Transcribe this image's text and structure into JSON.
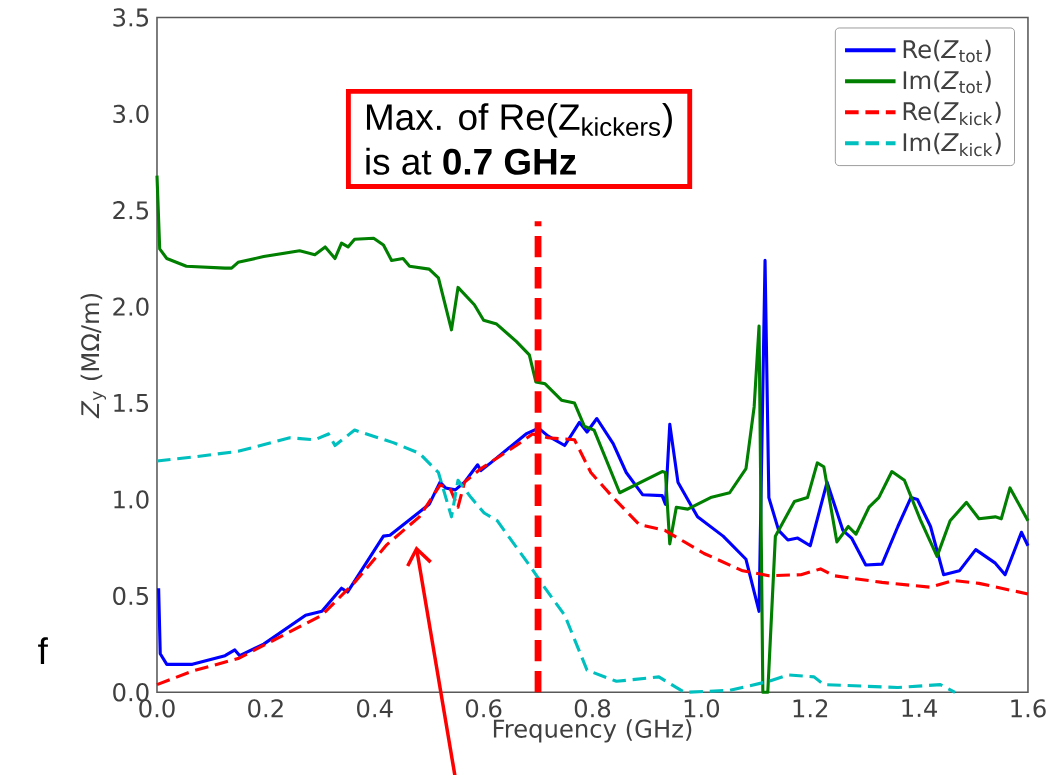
{
  "chart_data": {
    "type": "line",
    "xlabel": "Frequency (GHz)",
    "ylabel": "*Z*$_{y}$ (MΩ/m)",
    "xlim": [
      0,
      1.6
    ],
    "ylim": [
      0,
      3.5
    ],
    "xticks": [
      {
        "value": 0,
        "label": "0.0"
      },
      {
        "value": 0.2,
        "label": "0.2"
      },
      {
        "value": 0.4,
        "label": "0.4"
      },
      {
        "value": 0.6,
        "label": "0.6"
      },
      {
        "value": 0.8,
        "label": "0.8"
      },
      {
        "value": 1.0,
        "label": "1.0"
      },
      {
        "value": 1.2,
        "label": "1.2"
      },
      {
        "value": 1.4,
        "label": "1.4"
      },
      {
        "value": 1.6,
        "label": "1.6"
      }
    ],
    "yticks": [
      {
        "value": 0,
        "label": "0.0"
      },
      {
        "value": 0.5,
        "label": "0.5"
      },
      {
        "value": 1.0,
        "label": "1.0"
      },
      {
        "value": 1.5,
        "label": "1.5"
      },
      {
        "value": 2.0,
        "label": "2.0"
      },
      {
        "value": 2.5,
        "label": "2.5"
      },
      {
        "value": 3.0,
        "label": "3.0"
      },
      {
        "value": 3.5,
        "label": "3.5"
      }
    ],
    "legend": "top right",
    "series": [
      {
        "name": "Re(*Z*$_{tot}$)",
        "color": "#0000ff",
        "line_style": "solid",
        "x": [
          0.003,
          0.006,
          0.018,
          0.065,
          0.125,
          0.143,
          0.152,
          0.196,
          0.273,
          0.303,
          0.339,
          0.35,
          0.416,
          0.428,
          0.5,
          0.52,
          0.53,
          0.548,
          0.565,
          0.589,
          0.595,
          0.613,
          0.678,
          0.701,
          0.718,
          0.749,
          0.776,
          0.79,
          0.808,
          0.838,
          0.862,
          0.892,
          0.928,
          0.934,
          0.942,
          0.957,
          0.993,
          1.04,
          1.082,
          1.106,
          1.117,
          1.124,
          1.142,
          1.159,
          1.177,
          1.2,
          1.231,
          1.26,
          1.276,
          1.302,
          1.332,
          1.361,
          1.385,
          1.397,
          1.421,
          1.445,
          1.474,
          1.504,
          1.54,
          1.558,
          1.588,
          1.6
        ],
        "values": [
          0.54,
          0.2,
          0.145,
          0.145,
          0.19,
          0.22,
          0.19,
          0.25,
          0.4,
          0.42,
          0.54,
          0.52,
          0.81,
          0.815,
          0.975,
          1.09,
          1.06,
          1.05,
          1.09,
          1.18,
          1.15,
          1.19,
          1.34,
          1.37,
          1.33,
          1.28,
          1.4,
          1.35,
          1.42,
          1.29,
          1.14,
          1.025,
          1.02,
          0.975,
          1.39,
          1.09,
          0.91,
          0.81,
          0.69,
          0.42,
          2.24,
          1.01,
          0.84,
          0.79,
          0.8,
          0.76,
          1.09,
          0.84,
          0.8,
          0.66,
          0.665,
          0.86,
          1.01,
          1.0,
          0.86,
          0.61,
          0.63,
          0.74,
          0.67,
          0.61,
          0.83,
          0.76
        ]
      },
      {
        "name": "Im(*Z*$_{tot}$)",
        "color": "#007f00",
        "line_style": "solid",
        "x": [
          0.0,
          0.005,
          0.018,
          0.054,
          0.125,
          0.137,
          0.149,
          0.196,
          0.262,
          0.29,
          0.309,
          0.327,
          0.339,
          0.351,
          0.363,
          0.398,
          0.416,
          0.431,
          0.452,
          0.464,
          0.5,
          0.517,
          0.541,
          0.553,
          0.583,
          0.6,
          0.624,
          0.66,
          0.684,
          0.696,
          0.713,
          0.743,
          0.767,
          0.785,
          0.803,
          0.85,
          0.928,
          0.934,
          0.942,
          0.954,
          0.975,
          1.017,
          1.052,
          1.082,
          1.097,
          1.106,
          1.113,
          1.122,
          1.136,
          1.171,
          1.195,
          1.213,
          1.225,
          1.249,
          1.27,
          1.284,
          1.308,
          1.326,
          1.35,
          1.373,
          1.403,
          1.433,
          1.457,
          1.487,
          1.51,
          1.54,
          1.551,
          1.567,
          1.6
        ],
        "values": [
          2.68,
          2.3,
          2.25,
          2.21,
          2.2,
          2.2,
          2.23,
          2.26,
          2.29,
          2.27,
          2.31,
          2.25,
          2.33,
          2.31,
          2.35,
          2.355,
          2.32,
          2.24,
          2.25,
          2.21,
          2.195,
          2.15,
          1.88,
          2.1,
          2.01,
          1.93,
          1.91,
          1.82,
          1.75,
          1.61,
          1.6,
          1.515,
          1.5,
          1.38,
          1.36,
          1.035,
          1.145,
          1.14,
          0.77,
          0.96,
          0.95,
          1.01,
          1.035,
          1.16,
          1.48,
          1.9,
          0.0,
          0.0,
          0.81,
          0.99,
          1.01,
          1.19,
          1.17,
          0.78,
          0.86,
          0.82,
          0.96,
          1.01,
          1.145,
          1.1,
          0.89,
          0.705,
          0.89,
          0.985,
          0.9,
          0.91,
          0.9,
          1.06,
          0.89
        ]
      },
      {
        "name": "Re(*Z*$_{kick}$)",
        "color": "#ff0000",
        "line_style": "dashed",
        "x": [
          0.0,
          0.065,
          0.149,
          0.214,
          0.303,
          0.363,
          0.422,
          0.482,
          0.52,
          0.538,
          0.553,
          0.565,
          0.595,
          0.66,
          0.69,
          0.718,
          0.767,
          0.797,
          0.838,
          0.886,
          0.933,
          1.005,
          1.076,
          1.124,
          1.183,
          1.219,
          1.243,
          1.332,
          1.421,
          1.463,
          1.51,
          1.6
        ],
        "values": [
          0.04,
          0.11,
          0.175,
          0.27,
          0.4,
          0.57,
          0.765,
          0.91,
          1.075,
          1.06,
          0.96,
          1.09,
          1.16,
          1.28,
          1.34,
          1.32,
          1.31,
          1.14,
          1.01,
          0.87,
          0.84,
          0.72,
          0.63,
          0.605,
          0.61,
          0.64,
          0.605,
          0.57,
          0.545,
          0.58,
          0.565,
          0.51
        ]
      },
      {
        "name": "Im(*Z*$_{kick}$)",
        "color": "#00bfbf",
        "line_style": "dashed",
        "x": [
          0.0,
          0.065,
          0.149,
          0.244,
          0.29,
          0.315,
          0.327,
          0.363,
          0.434,
          0.482,
          0.517,
          0.541,
          0.553,
          0.577,
          0.601,
          0.625,
          0.684,
          0.713,
          0.749,
          0.79,
          0.844,
          0.922,
          0.969,
          1.052,
          1.124,
          1.159,
          1.207,
          1.225,
          1.361,
          1.439,
          1.466
        ],
        "values": [
          1.2,
          1.22,
          1.25,
          1.32,
          1.31,
          1.34,
          1.28,
          1.36,
          1.295,
          1.24,
          1.14,
          0.91,
          1.1,
          1.01,
          0.93,
          0.89,
          0.66,
          0.54,
          0.4,
          0.115,
          0.057,
          0.08,
          0.0,
          0.01,
          0.057,
          0.09,
          0.08,
          0.04,
          0.025,
          0.04,
          0.0
        ]
      }
    ],
    "ref_lines": [
      {
        "axis": "x",
        "value": 0.7,
        "color": "#ff0000",
        "line_style": "dashed"
      }
    ],
    "annotations": [
      "Max. of Re(Z$_{kickers}$)",
      "is at **0.7 GHz**",
      "f"
    ]
  }
}
